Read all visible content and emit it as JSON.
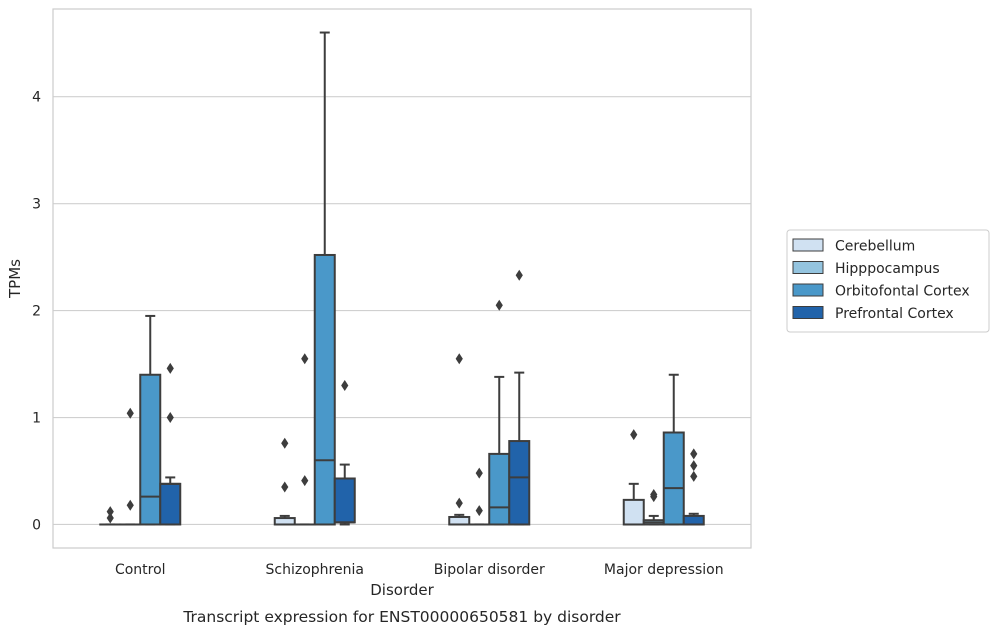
{
  "chart_data": {
    "type": "boxplot",
    "title": "Transcript expression for ENST00000650581 by disorder",
    "xlabel": "Disorder",
    "ylabel": "TPMs",
    "categories": [
      "Control",
      "Schizophrenia",
      "Bipolar disorder",
      "Major depression"
    ],
    "ylim": [
      -0.22,
      4.82
    ],
    "yticks": [
      0,
      1,
      2,
      3,
      4
    ],
    "grid": true,
    "legend_position": "right",
    "series": [
      {
        "name": "Cerebellum",
        "color": "#d0e1f2",
        "boxes": [
          {
            "whislo": 0,
            "q1": 0,
            "median": 0,
            "q3": 0,
            "whishi": 0,
            "fliers": [
              0.06,
              0.12
            ]
          },
          {
            "whislo": 0,
            "q1": 0,
            "median": 0,
            "q3": 0.06,
            "whishi": 0.08,
            "fliers": [
              0.35,
              0.76
            ]
          },
          {
            "whislo": 0,
            "q1": 0,
            "median": 0,
            "q3": 0.07,
            "whishi": 0.09,
            "fliers": [
              0.2,
              1.55
            ]
          },
          {
            "whislo": 0,
            "q1": 0,
            "median": 0,
            "q3": 0.23,
            "whishi": 0.38,
            "fliers": [
              0.84
            ]
          }
        ]
      },
      {
        "name": "Hipppocampus",
        "color": "#94c4df",
        "boxes": [
          {
            "whislo": 0,
            "q1": 0,
            "median": 0,
            "q3": 0,
            "whishi": 0,
            "fliers": [
              0.18,
              1.04
            ]
          },
          {
            "whislo": 0,
            "q1": 0,
            "median": 0,
            "q3": 0,
            "whishi": 0,
            "fliers": [
              0.41,
              1.55
            ]
          },
          {
            "whislo": 0,
            "q1": 0,
            "median": 0,
            "q3": 0,
            "whishi": 0,
            "fliers": [
              0.13,
              0.48
            ]
          },
          {
            "whislo": 0,
            "q1": 0,
            "median": 0.02,
            "q3": 0.04,
            "whishi": 0.08,
            "fliers": [
              0.26,
              0.28
            ]
          }
        ]
      },
      {
        "name": "Orbitofontal Cortex",
        "color": "#4a98c9",
        "boxes": [
          {
            "whislo": 0,
            "q1": 0,
            "median": 0.26,
            "q3": 1.4,
            "whishi": 1.95,
            "fliers": []
          },
          {
            "whislo": 0,
            "q1": 0,
            "median": 0.6,
            "q3": 2.52,
            "whishi": 4.6,
            "fliers": []
          },
          {
            "whislo": 0,
            "q1": 0,
            "median": 0.16,
            "q3": 0.66,
            "whishi": 1.38,
            "fliers": [
              2.05
            ]
          },
          {
            "whislo": 0,
            "q1": 0,
            "median": 0.34,
            "q3": 0.86,
            "whishi": 1.4,
            "fliers": []
          }
        ]
      },
      {
        "name": "Prefrontal Cortex",
        "color": "#2163aa",
        "boxes": [
          {
            "whislo": 0,
            "q1": 0,
            "median": 0.38,
            "q3": 0.38,
            "whishi": 0.44,
            "fliers": [
              1.0,
              1.46
            ]
          },
          {
            "whislo": 0,
            "q1": 0.02,
            "median": 0.02,
            "q3": 0.43,
            "whishi": 0.56,
            "fliers": [
              1.3
            ]
          },
          {
            "whislo": 0,
            "q1": 0,
            "median": 0.44,
            "q3": 0.78,
            "whishi": 1.42,
            "fliers": [
              2.33
            ]
          },
          {
            "whislo": 0,
            "q1": 0,
            "median": 0,
            "q3": 0.08,
            "whishi": 0.1,
            "fliers": [
              0.45,
              0.55,
              0.66
            ]
          }
        ]
      }
    ]
  }
}
